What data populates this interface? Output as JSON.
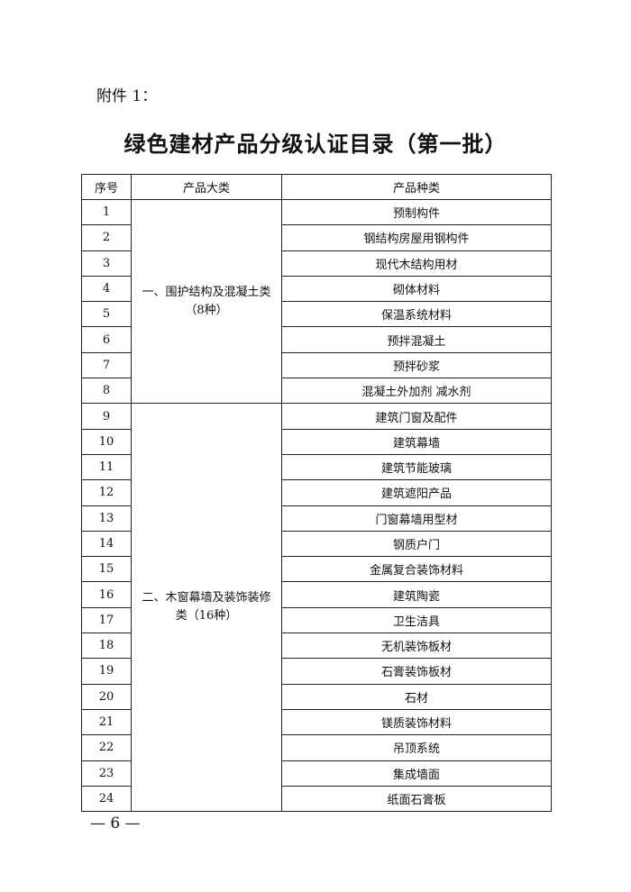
{
  "header": {
    "label": "附件 1："
  },
  "title": "绿色建材产品分级认证目录（第一批）",
  "table": {
    "columns": [
      "序号",
      "产品大类",
      "产品种类"
    ],
    "groups": [
      {
        "lines": [
          "一、围护结构及混凝土类",
          "（8种）"
        ],
        "rows": [
          [
            1,
            "预制构件"
          ],
          [
            2,
            "钢结构房屋用钢构件"
          ],
          [
            3,
            "现代木结构用材"
          ],
          [
            4,
            "砌体材料"
          ],
          [
            5,
            "保温系统材料"
          ],
          [
            6,
            "预拌混凝土"
          ],
          [
            7,
            "预拌砂浆"
          ],
          [
            8,
            "混凝土外加剂 减水剂"
          ]
        ]
      },
      {
        "lines": [
          "二、木窗幕墙及装饰装修",
          "类（16种）"
        ],
        "rows": [
          [
            9,
            "建筑门窗及配件"
          ],
          [
            10,
            "建筑幕墙"
          ],
          [
            11,
            "建筑节能玻璃"
          ],
          [
            12,
            "建筑遮阳产品"
          ],
          [
            13,
            "门窗幕墙用型材"
          ],
          [
            14,
            "钢质户门"
          ],
          [
            15,
            "金属复合装饰材料"
          ],
          [
            16,
            "建筑陶瓷"
          ],
          [
            17,
            "卫生洁具"
          ],
          [
            18,
            "无机装饰板材"
          ],
          [
            19,
            "石膏装饰板材"
          ],
          [
            20,
            "石材"
          ],
          [
            21,
            "镁质装饰材料"
          ],
          [
            22,
            "吊顶系统"
          ],
          [
            23,
            "集成墙面"
          ],
          [
            24,
            "纸面石膏板"
          ]
        ]
      }
    ]
  },
  "footer": {
    "page": "— 6 —"
  }
}
